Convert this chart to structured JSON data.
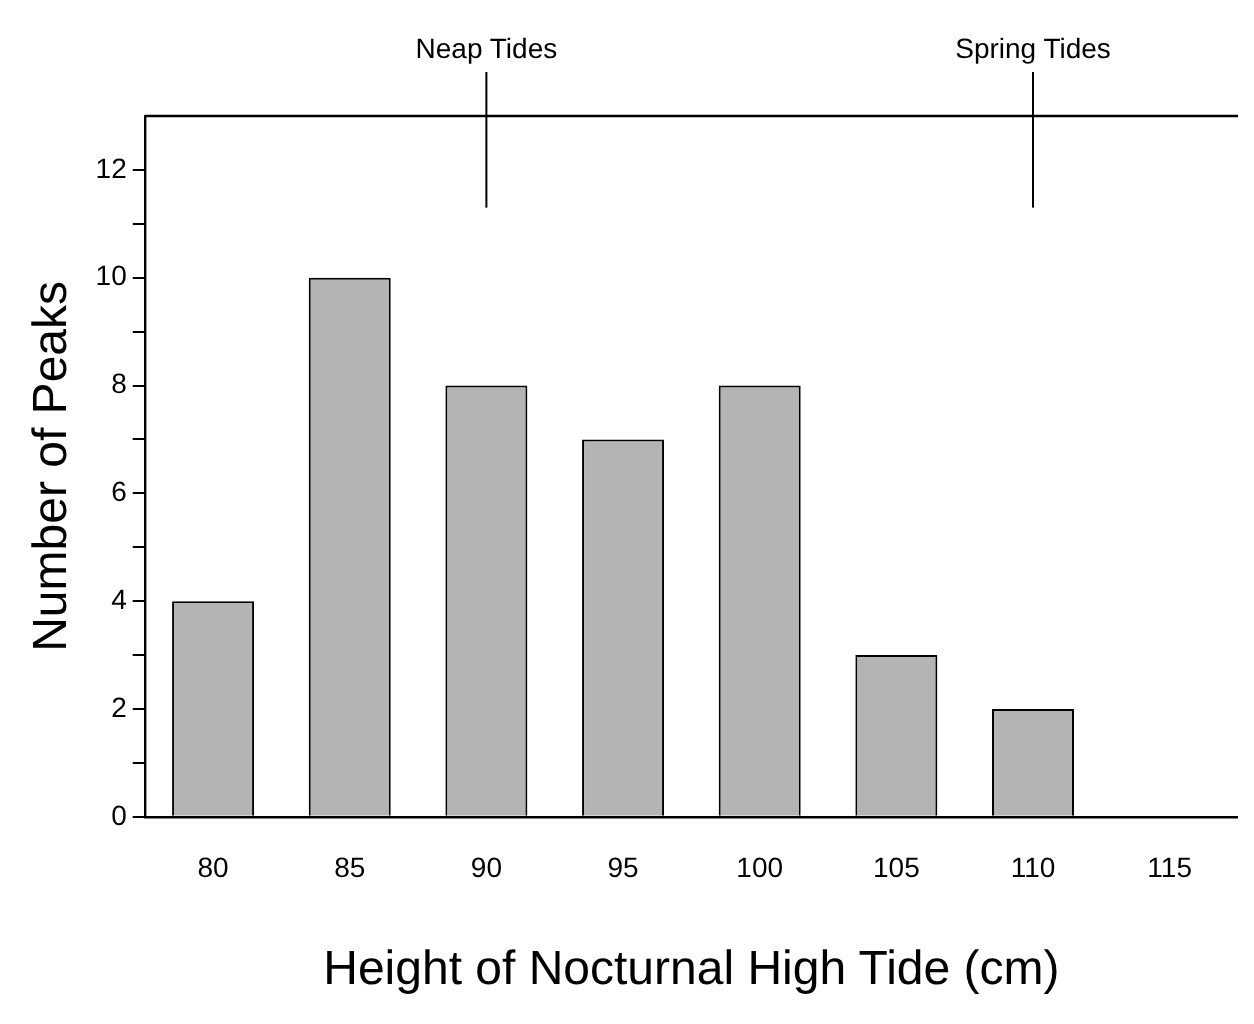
{
  "chart_data": {
    "type": "bar",
    "xlabel": "Height of Nocturnal High Tide (cm)",
    "ylabel": "Number of Peaks",
    "categories": [
      "80",
      "85",
      "90",
      "95",
      "100",
      "105",
      "110",
      "115"
    ],
    "values": [
      4,
      10,
      8,
      7,
      8,
      3,
      2,
      0
    ],
    "color": "#b4b4b4",
    "ylim": [
      0,
      13
    ],
    "yticks": [
      0,
      {
        "value": 1,
        "label": null
      },
      2,
      {
        "value": 3,
        "label": null
      },
      4,
      {
        "value": 5,
        "label": null
      },
      6,
      {
        "value": 7,
        "label": null
      },
      8,
      {
        "value": 9,
        "label": null
      },
      10,
      {
        "value": 11,
        "label": null
      },
      12
    ],
    "ref_lines": [
      {
        "axis": "x",
        "value": "90",
        "label": "Neap Tides"
      },
      {
        "axis": "x",
        "value": "110",
        "label": "Spring Tides"
      }
    ],
    "grid": false,
    "legend": false
  }
}
